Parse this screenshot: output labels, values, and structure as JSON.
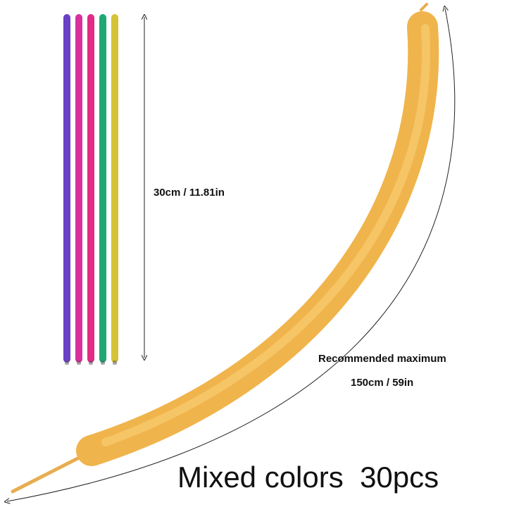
{
  "labels": {
    "short_length": "30cm / 11.81in",
    "max_title": "Recommended maximum",
    "max_length": "150cm / 59in",
    "caption": "Mixed colors  30pcs"
  }
}
